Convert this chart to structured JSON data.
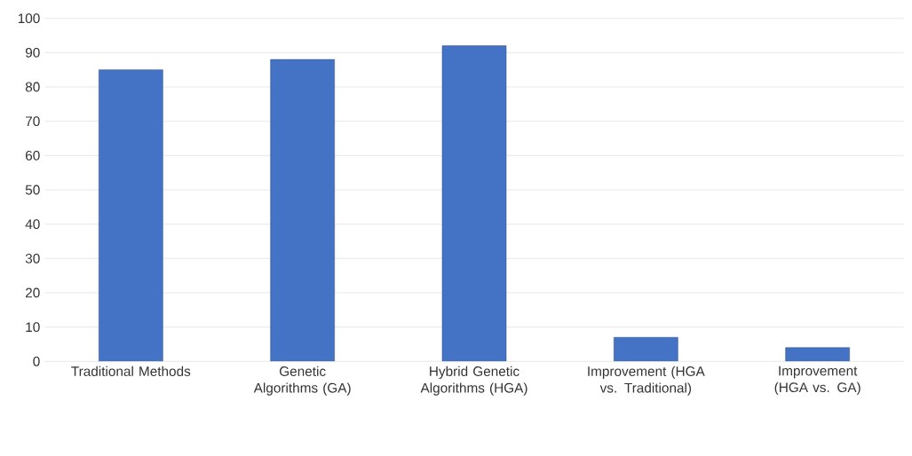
{
  "chart_data": {
    "type": "bar",
    "categories": [
      "Traditional Methods",
      "Genetic Algorithms (GA)",
      "Hybrid Genetic Algorithms (HGA)",
      "Improvement (HGA vs. Traditional)",
      "Improvement (HGA vs. GA)"
    ],
    "values": [
      85,
      88,
      92,
      7,
      4
    ],
    "color": "#4472c4",
    "ylim": [
      0,
      100
    ],
    "yticks": [
      0,
      10,
      20,
      30,
      40,
      50,
      60,
      70,
      80,
      90,
      100
    ],
    "grid": "y"
  }
}
